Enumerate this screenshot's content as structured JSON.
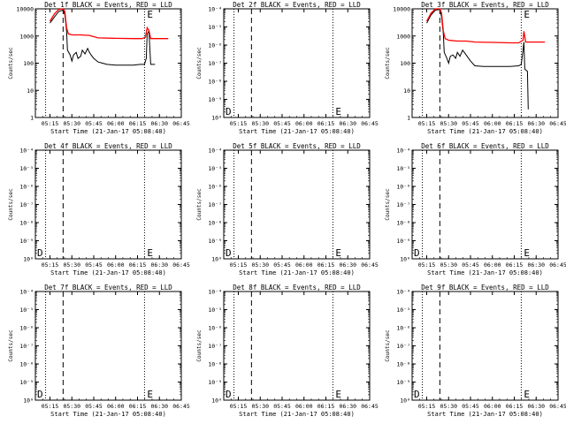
{
  "chart_data": [
    {
      "type": "line",
      "title": "Det 1f BLACK = Events, RED = LLD",
      "xlabel": "Start Time (21-Jan-17 05:08:40)",
      "ylabel": "Counts/sec",
      "scale": "log",
      "yticks": [
        "10000",
        "1000",
        "100",
        "10",
        "1"
      ],
      "xticks": [
        "05:15",
        "05:30",
        "05:45",
        "06:00",
        "06:15",
        "06:30",
        "06:45"
      ],
      "markers": [
        "",
        "E"
      ],
      "series": [
        {
          "name": "Events",
          "color": "#000000",
          "points": [
            [
              5.25,
              3000
            ],
            [
              5.3,
              5000
            ],
            [
              5.35,
              8000
            ],
            [
              5.4,
              9000
            ],
            [
              5.42,
              6000
            ],
            [
              5.44,
              1500
            ],
            [
              5.45,
              300
            ],
            [
              5.48,
              200
            ],
            [
              5.5,
              120
            ],
            [
              5.52,
              200
            ],
            [
              5.55,
              250
            ],
            [
              5.57,
              150
            ],
            [
              5.6,
              180
            ],
            [
              5.62,
              300
            ],
            [
              5.65,
              220
            ],
            [
              5.68,
              350
            ],
            [
              5.7,
              250
            ],
            [
              5.72,
              200
            ],
            [
              5.75,
              150
            ],
            [
              5.8,
              110
            ],
            [
              5.85,
              100
            ],
            [
              5.9,
              90
            ],
            [
              6.0,
              85
            ],
            [
              6.1,
              85
            ],
            [
              6.2,
              85
            ],
            [
              6.28,
              90
            ],
            [
              6.33,
              90
            ],
            [
              6.35,
              150
            ],
            [
              6.36,
              1200
            ],
            [
              6.38,
              1500
            ],
            [
              6.4,
              90
            ],
            [
              6.45,
              90
            ]
          ]
        },
        {
          "name": "LLD",
          "color": "#ff0000",
          "points": [
            [
              5.25,
              3500
            ],
            [
              5.3,
              6500
            ],
            [
              5.35,
              9500
            ],
            [
              5.4,
              10000
            ],
            [
              5.42,
              8000
            ],
            [
              5.44,
              2000
            ],
            [
              5.46,
              1200
            ],
            [
              5.5,
              1100
            ],
            [
              5.6,
              1100
            ],
            [
              5.7,
              1050
            ],
            [
              5.8,
              850
            ],
            [
              6.0,
              820
            ],
            [
              6.2,
              800
            ],
            [
              6.3,
              800
            ],
            [
              6.34,
              900
            ],
            [
              6.36,
              2000
            ],
            [
              6.38,
              1600
            ],
            [
              6.4,
              800
            ],
            [
              6.5,
              800
            ],
            [
              6.6,
              800
            ]
          ]
        }
      ]
    },
    {
      "type": "line",
      "title": "Det 2f BLACK = Events, RED = LLD",
      "xlabel": "Start Time (21-Jan-17 05:08:40)",
      "ylabel": "Counts/sec",
      "scale": "log",
      "yticks": [
        "10⁻⁴",
        "10⁻⁵",
        "10⁻⁶",
        "10⁻⁷",
        "10⁻⁸",
        "10⁻⁹",
        "10⁰"
      ],
      "xticks": [
        "05:15",
        "05:30",
        "05:45",
        "06:00",
        "06:15",
        "06:30",
        "06:45"
      ],
      "markers": [
        "D",
        "E"
      ],
      "series": []
    },
    {
      "type": "line",
      "title": "Det 3f BLACK = Events, RED = LLD",
      "xlabel": "Start Time (21-Jan-17 05:08:40)",
      "ylabel": "Counts/sec",
      "scale": "log",
      "yticks": [
        "10000",
        "1000",
        "100",
        "10",
        "1"
      ],
      "xticks": [
        "05:15",
        "05:30",
        "05:45",
        "06:00",
        "06:15",
        "06:30",
        "06:45"
      ],
      "markers": [
        "",
        "E"
      ],
      "series": [
        {
          "name": "Events",
          "color": "#000000",
          "points": [
            [
              5.25,
              3000
            ],
            [
              5.3,
              6000
            ],
            [
              5.35,
              9000
            ],
            [
              5.4,
              9500
            ],
            [
              5.42,
              5000
            ],
            [
              5.44,
              1200
            ],
            [
              5.45,
              250
            ],
            [
              5.48,
              150
            ],
            [
              5.5,
              100
            ],
            [
              5.52,
              180
            ],
            [
              5.55,
              200
            ],
            [
              5.58,
              150
            ],
            [
              5.6,
              250
            ],
            [
              5.63,
              180
            ],
            [
              5.66,
              300
            ],
            [
              5.7,
              200
            ],
            [
              5.75,
              120
            ],
            [
              5.8,
              80
            ],
            [
              5.9,
              75
            ],
            [
              6.0,
              75
            ],
            [
              6.1,
              75
            ],
            [
              6.2,
              75
            ],
            [
              6.3,
              80
            ],
            [
              6.33,
              90
            ],
            [
              6.35,
              300
            ],
            [
              6.36,
              600
            ],
            [
              6.37,
              60
            ],
            [
              6.4,
              50
            ],
            [
              6.41,
              2
            ]
          ]
        },
        {
          "name": "LLD",
          "color": "#ff0000",
          "points": [
            [
              5.25,
              3500
            ],
            [
              5.3,
              7000
            ],
            [
              5.35,
              10000
            ],
            [
              5.4,
              10500
            ],
            [
              5.42,
              7000
            ],
            [
              5.44,
              1500
            ],
            [
              5.46,
              800
            ],
            [
              5.5,
              700
            ],
            [
              5.6,
              650
            ],
            [
              5.7,
              650
            ],
            [
              5.8,
              600
            ],
            [
              6.0,
              580
            ],
            [
              6.2,
              560
            ],
            [
              6.3,
              560
            ],
            [
              6.35,
              700
            ],
            [
              6.36,
              1500
            ],
            [
              6.38,
              600
            ],
            [
              6.45,
              600
            ],
            [
              6.6,
              600
            ]
          ]
        }
      ]
    },
    {
      "type": "line",
      "title": "Det 4f BLACK = Events, RED = LLD",
      "xlabel": "Start Time (21-Jan-17 05:08:40)",
      "ylabel": "Counts/sec",
      "scale": "log",
      "yticks": [
        "10⁻⁴",
        "10⁻⁵",
        "10⁻⁶",
        "10⁻⁷",
        "10⁻⁸",
        "10⁻⁹",
        "10⁰"
      ],
      "xticks": [
        "05:15",
        "05:30",
        "05:45",
        "06:00",
        "06:15",
        "06:30",
        "06:45"
      ],
      "markers": [
        "D",
        "E"
      ],
      "series": []
    },
    {
      "type": "line",
      "title": "Det 5f BLACK = Events, RED = LLD",
      "xlabel": "Start Time (21-Jan-17 05:08:40)",
      "ylabel": "Counts/sec",
      "scale": "log",
      "yticks": [
        "10⁻⁴",
        "10⁻⁵",
        "10⁻⁶",
        "10⁻⁷",
        "10⁻⁸",
        "10⁻⁹",
        "10⁰"
      ],
      "xticks": [
        "05:15",
        "05:30",
        "05:45",
        "06:00",
        "06:15",
        "06:30",
        "06:45"
      ],
      "markers": [
        "D",
        "E"
      ],
      "series": []
    },
    {
      "type": "line",
      "title": "Det 6f BLACK = Events, RED = LLD",
      "xlabel": "Start Time (21-Jan-17 05:08:40)",
      "ylabel": "Counts/sec",
      "scale": "log",
      "yticks": [
        "10⁻⁴",
        "10⁻⁵",
        "10⁻⁶",
        "10⁻⁷",
        "10⁻⁸",
        "10⁻⁹",
        "10⁰"
      ],
      "xticks": [
        "05:15",
        "05:30",
        "05:45",
        "06:00",
        "06:15",
        "06:30",
        "06:45"
      ],
      "markers": [
        "D",
        "E"
      ],
      "series": []
    },
    {
      "type": "line",
      "title": "Det 7f BLACK = Events, RED = LLD",
      "xlabel": "Start Time (21-Jan-17 05:08:40)",
      "ylabel": "Counts/sec",
      "scale": "log",
      "yticks": [
        "10⁻⁴",
        "10⁻⁵",
        "10⁻⁶",
        "10⁻⁷",
        "10⁻⁸",
        "10⁻⁹",
        "10⁰"
      ],
      "xticks": [
        "05:15",
        "05:30",
        "05:45",
        "06:00",
        "06:15",
        "06:30",
        "06:45"
      ],
      "markers": [
        "D",
        "E"
      ],
      "series": []
    },
    {
      "type": "line",
      "title": "Det 8f BLACK = Events, RED = LLD",
      "xlabel": "Start Time (21-Jan-17 05:08:40)",
      "ylabel": "Counts/sec",
      "scale": "log",
      "yticks": [
        "10⁻⁴",
        "10⁻⁵",
        "10⁻⁶",
        "10⁻⁷",
        "10⁻⁸",
        "10⁻⁹",
        "10⁰"
      ],
      "xticks": [
        "05:15",
        "05:30",
        "05:45",
        "06:00",
        "06:15",
        "06:30",
        "06:45"
      ],
      "markers": [
        "D",
        "E"
      ],
      "series": []
    },
    {
      "type": "line",
      "title": "Det 9f BLACK = Events, RED = LLD",
      "xlabel": "Start Time (21-Jan-17 05:08:40)",
      "ylabel": "Counts/sec",
      "scale": "log",
      "yticks": [
        "10⁻⁴",
        "10⁻⁵",
        "10⁻⁶",
        "10⁻⁷",
        "10⁻⁸",
        "10⁻⁹",
        "10⁰"
      ],
      "xticks": [
        "05:15",
        "05:30",
        "05:45",
        "06:00",
        "06:15",
        "06:30",
        "06:45"
      ],
      "markers": [
        "D",
        "E"
      ],
      "series": []
    }
  ]
}
